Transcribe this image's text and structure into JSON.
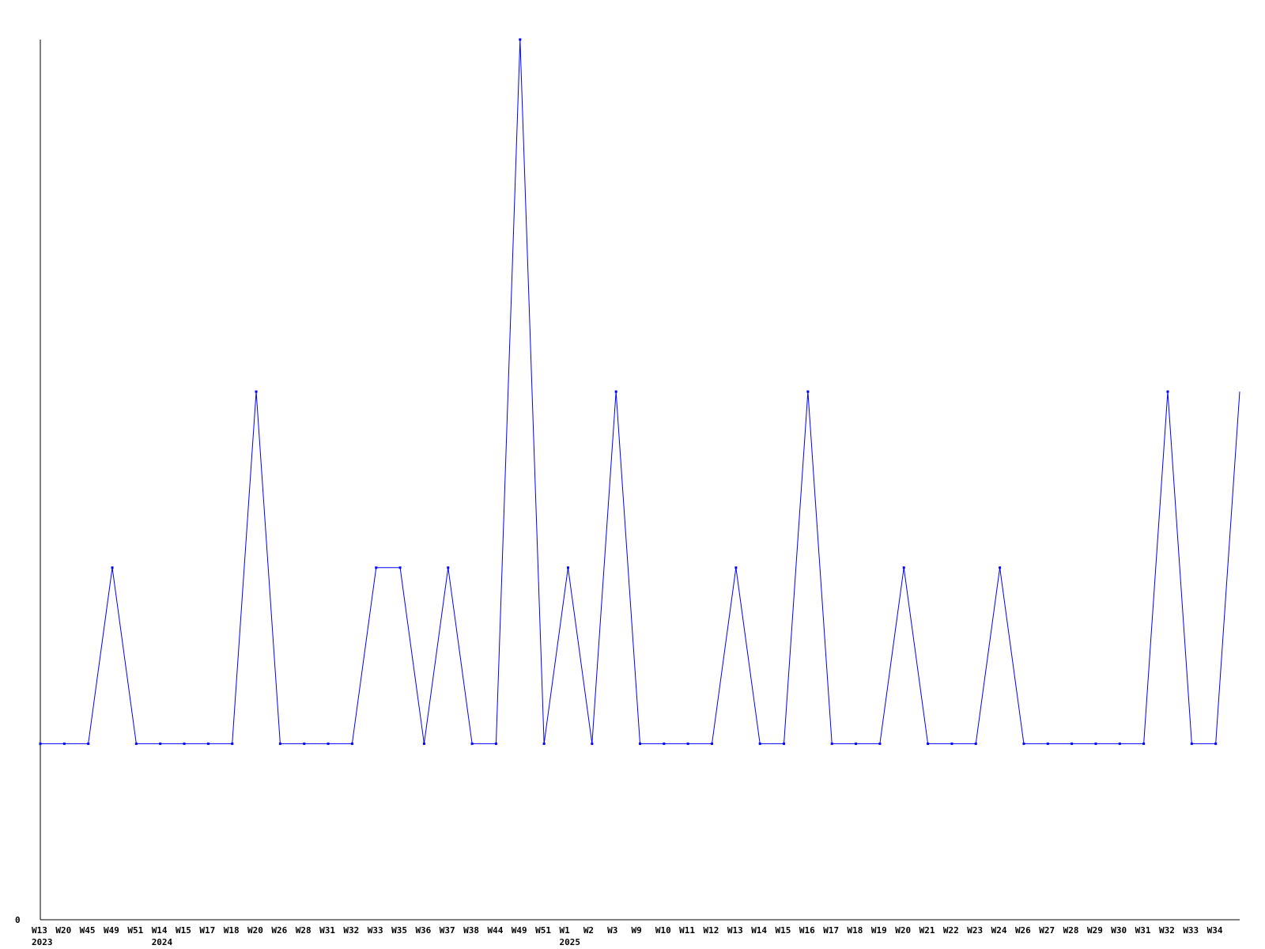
{
  "chart_data": {
    "type": "line",
    "title": "",
    "xlabel": "",
    "ylabel": "",
    "ylim": [
      0,
      5
    ],
    "y_tick_labels": [
      "0"
    ],
    "grid": false,
    "line_color": "#0000ff",
    "categories": [
      "W13",
      "W20",
      "W45",
      "W49",
      "W51",
      "W14",
      "W15",
      "W17",
      "W18",
      "W20",
      "W26",
      "W28",
      "W31",
      "W32",
      "W33",
      "W35",
      "W36",
      "W37",
      "W38",
      "W44",
      "W49",
      "W51",
      "W1",
      "W2",
      "W3",
      "W9",
      "W10",
      "W11",
      "W12",
      "W13",
      "W14",
      "W15",
      "W16",
      "W17",
      "W18",
      "W19",
      "W20",
      "W21",
      "W22",
      "W23",
      "W24",
      "W26",
      "W27",
      "W28",
      "W29",
      "W30",
      "W31",
      "W32",
      "W33",
      "W34",
      ""
    ],
    "year_labels": [
      {
        "index": 0,
        "label": "2023"
      },
      {
        "index": 5,
        "label": "2024"
      },
      {
        "index": 22,
        "label": "2025"
      }
    ],
    "values": [
      1,
      1,
      1,
      2,
      1,
      1,
      1,
      1,
      1,
      3,
      1,
      1,
      1,
      1,
      2,
      2,
      1,
      2,
      1,
      1,
      5,
      1,
      2,
      1,
      3,
      1,
      1,
      1,
      1,
      2,
      1,
      1,
      3,
      1,
      1,
      1,
      2,
      1,
      1,
      1,
      2,
      1,
      1,
      1,
      1,
      1,
      1,
      3,
      1,
      1,
      3
    ]
  }
}
